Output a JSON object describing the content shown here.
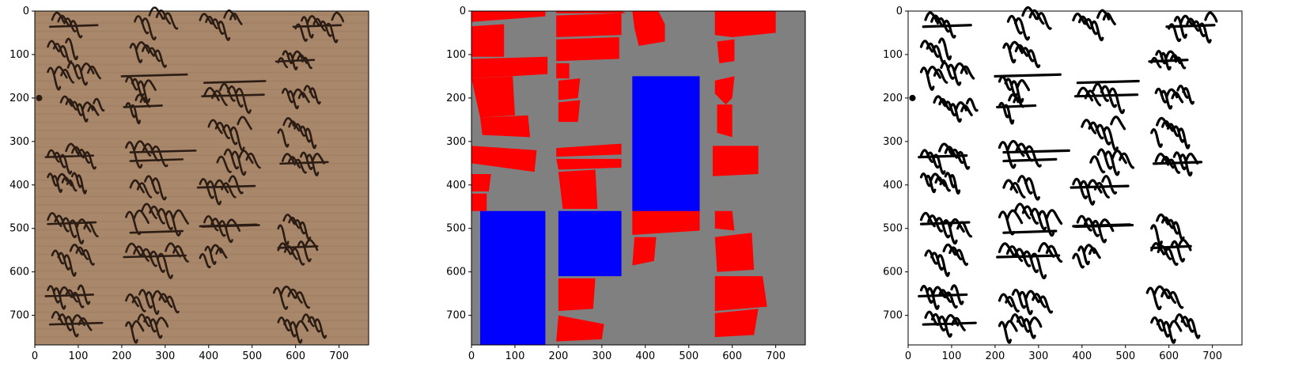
{
  "axis": {
    "x_ticks": [
      "0",
      "100",
      "200",
      "300",
      "400",
      "500",
      "600",
      "700"
    ],
    "y_ticks": [
      "0",
      "100",
      "200",
      "300",
      "400",
      "500",
      "600",
      "700"
    ]
  },
  "panels": [
    {
      "name": "original-manuscript-image",
      "description_colors": {
        "parchment": "#a98566",
        "ink": "#2b1d14"
      }
    },
    {
      "name": "segmentation-mask",
      "colors": {
        "background": "#808080",
        "text_region": "#ff0000",
        "image_region": "#0000ff"
      }
    },
    {
      "name": "binarized-image",
      "colors": {
        "background": "#ffffff",
        "ink": "#000000"
      }
    }
  ],
  "mask": {
    "red_regions": [
      [
        [
          0,
          0
        ],
        [
          170,
          0
        ],
        [
          170,
          12
        ],
        [
          0,
          25
        ]
      ],
      [
        [
          195,
          0
        ],
        [
          345,
          0
        ],
        [
          355,
          5
        ],
        [
          195,
          5
        ]
      ],
      [
        [
          370,
          0
        ],
        [
          430,
          0
        ],
        [
          445,
          30
        ],
        [
          445,
          70
        ],
        [
          385,
          80
        ],
        [
          375,
          40
        ]
      ],
      [
        [
          560,
          0
        ],
        [
          700,
          0
        ],
        [
          700,
          50
        ],
        [
          600,
          60
        ],
        [
          560,
          55
        ]
      ],
      [
        [
          0,
          35
        ],
        [
          75,
          30
        ],
        [
          75,
          105
        ],
        [
          0,
          105
        ]
      ],
      [
        [
          195,
          10
        ],
        [
          345,
          5
        ],
        [
          345,
          55
        ],
        [
          195,
          60
        ]
      ],
      [
        [
          195,
          65
        ],
        [
          340,
          60
        ],
        [
          340,
          110
        ],
        [
          195,
          115
        ]
      ],
      [
        [
          565,
          70
        ],
        [
          605,
          65
        ],
        [
          605,
          115
        ],
        [
          570,
          120
        ]
      ],
      [
        [
          0,
          110
        ],
        [
          175,
          105
        ],
        [
          175,
          145
        ],
        [
          0,
          155
        ]
      ],
      [
        [
          195,
          120
        ],
        [
          225,
          120
        ],
        [
          225,
          155
        ],
        [
          195,
          155
        ]
      ],
      [
        [
          0,
          155
        ],
        [
          95,
          150
        ],
        [
          100,
          240
        ],
        [
          20,
          245
        ]
      ],
      [
        [
          200,
          160
        ],
        [
          250,
          155
        ],
        [
          245,
          200
        ],
        [
          200,
          205
        ]
      ],
      [
        [
          560,
          160
        ],
        [
          605,
          150
        ],
        [
          600,
          200
        ],
        [
          585,
          215
        ],
        [
          560,
          190
        ]
      ],
      [
        [
          20,
          245
        ],
        [
          130,
          240
        ],
        [
          135,
          290
        ],
        [
          25,
          285
        ]
      ],
      [
        [
          200,
          210
        ],
        [
          250,
          205
        ],
        [
          245,
          255
        ],
        [
          200,
          255
        ]
      ],
      [
        [
          565,
          215
        ],
        [
          600,
          215
        ],
        [
          600,
          290
        ],
        [
          565,
          280
        ]
      ],
      [
        [
          0,
          310
        ],
        [
          150,
          320
        ],
        [
          145,
          370
        ],
        [
          0,
          350
        ]
      ],
      [
        [
          195,
          315
        ],
        [
          345,
          305
        ],
        [
          345,
          330
        ],
        [
          195,
          335
        ]
      ],
      [
        [
          195,
          340
        ],
        [
          345,
          340
        ],
        [
          345,
          360
        ],
        [
          200,
          365
        ]
      ],
      [
        [
          555,
          310
        ],
        [
          660,
          310
        ],
        [
          660,
          375
        ],
        [
          555,
          380
        ]
      ],
      [
        [
          0,
          375
        ],
        [
          45,
          375
        ],
        [
          40,
          415
        ],
        [
          0,
          415
        ]
      ],
      [
        [
          200,
          370
        ],
        [
          285,
          365
        ],
        [
          290,
          455
        ],
        [
          210,
          455
        ]
      ],
      [
        [
          0,
          420
        ],
        [
          35,
          420
        ],
        [
          35,
          460
        ],
        [
          0,
          460
        ]
      ],
      [
        [
          370,
          460
        ],
        [
          525,
          455
        ],
        [
          525,
          505
        ],
        [
          370,
          515
        ]
      ],
      [
        [
          560,
          460
        ],
        [
          600,
          460
        ],
        [
          605,
          505
        ],
        [
          560,
          500
        ]
      ],
      [
        [
          375,
          520
        ],
        [
          425,
          520
        ],
        [
          420,
          575
        ],
        [
          370,
          585
        ]
      ],
      [
        [
          560,
          520
        ],
        [
          645,
          510
        ],
        [
          650,
          595
        ],
        [
          565,
          600
        ]
      ],
      [
        [
          200,
          615
        ],
        [
          285,
          615
        ],
        [
          280,
          685
        ],
        [
          200,
          690
        ]
      ],
      [
        [
          560,
          610
        ],
        [
          670,
          610
        ],
        [
          680,
          680
        ],
        [
          560,
          690
        ]
      ],
      [
        [
          200,
          700
        ],
        [
          305,
          720
        ],
        [
          300,
          755
        ],
        [
          195,
          760
        ]
      ],
      [
        [
          560,
          695
        ],
        [
          660,
          685
        ],
        [
          650,
          745
        ],
        [
          560,
          750
        ]
      ]
    ],
    "blue_regions": [
      [
        [
          370,
          150
        ],
        [
          525,
          150
        ],
        [
          525,
          460
        ],
        [
          370,
          460
        ]
      ],
      [
        [
          20,
          460
        ],
        [
          170,
          460
        ],
        [
          170,
          770
        ],
        [
          20,
          770
        ]
      ],
      [
        [
          200,
          460
        ],
        [
          345,
          460
        ],
        [
          345,
          610
        ],
        [
          200,
          610
        ]
      ]
    ]
  }
}
